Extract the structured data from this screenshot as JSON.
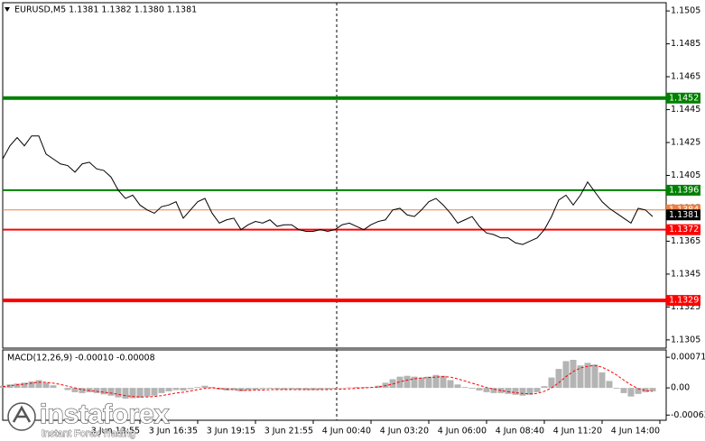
{
  "chart_data": [
    {
      "type": "line",
      "title": "EURUSD,M5  1.1381 1.1382 1.1380 1.1381",
      "color": "#000000",
      "categories": [
        null,
        null,
        null,
        null,
        null,
        null,
        null,
        null,
        null,
        null,
        null,
        null,
        null,
        null,
        null,
        null,
        null,
        null,
        null,
        "3 Jun 13:55",
        null,
        null,
        null,
        null,
        null,
        null,
        null,
        "3 Jun 16:35",
        null,
        null,
        null,
        null,
        null,
        null,
        null,
        "3 Jun 19:15",
        null,
        null,
        null,
        null,
        null,
        null,
        null,
        "3 Jun 21:55",
        null,
        null,
        null,
        null,
        null,
        null,
        null,
        "4 Jun 00:40",
        null,
        null,
        null,
        null,
        null,
        null,
        null,
        "4 Jun 03:20",
        null,
        null,
        null,
        null,
        null,
        null,
        null,
        "4 Jun 06:00",
        null,
        null,
        null,
        null,
        null,
        null,
        null,
        "4 Jun 08:40",
        null,
        null,
        null,
        null,
        null,
        null,
        null,
        "4 Jun 11:20",
        null,
        null,
        null,
        null,
        null,
        null,
        null,
        "4 Jun 14:00"
      ],
      "values": [
        1.1415,
        1.1423,
        1.1428,
        1.1423,
        1.1429,
        1.1429,
        1.1418,
        1.1415,
        1.1412,
        1.1411,
        1.1407,
        1.1412,
        1.1413,
        1.1409,
        1.1408,
        1.1404,
        1.1396,
        1.1391,
        1.1393,
        1.1387,
        1.1384,
        1.1382,
        1.1386,
        1.1387,
        1.1389,
        1.1379,
        1.1384,
        1.1389,
        1.1391,
        1.1382,
        1.1376,
        1.1378,
        1.1379,
        1.1372,
        1.1375,
        1.1377,
        1.1376,
        1.1378,
        1.1374,
        1.1375,
        1.1375,
        1.1372,
        1.1371,
        1.1371,
        1.1372,
        1.1371,
        1.1372,
        1.1375,
        1.1376,
        1.1374,
        1.1372,
        1.1375,
        1.1377,
        1.1378,
        1.1384,
        1.1385,
        1.1381,
        1.138,
        1.1384,
        1.1389,
        1.1391,
        1.1387,
        1.1382,
        1.1376,
        1.1378,
        1.138,
        1.1374,
        1.137,
        1.1369,
        1.1367,
        1.1367,
        1.1364,
        1.1363,
        1.1365,
        1.1367,
        1.1372,
        1.138,
        1.139,
        1.1393,
        1.1387,
        1.1393,
        1.1401,
        1.1395,
        1.1389,
        1.1385,
        1.1382,
        1.1379,
        1.1376,
        1.1385,
        1.1384,
        1.138,
        null
      ],
      "ylim": [
        1.13,
        1.151
      ],
      "yticks": [
        1.1505,
        1.1485,
        1.1465,
        1.1445,
        1.1425,
        1.1405,
        1.1385,
        1.1365,
        1.1345,
        1.1325,
        1.1305
      ],
      "levels": [
        {
          "value": 1.1452,
          "color": "#008000",
          "width": 4
        },
        {
          "value": 1.1396,
          "color": "#008000",
          "width": 2
        },
        {
          "value": 1.1384,
          "color": "#f08040",
          "width": 1
        },
        {
          "value": 1.1372,
          "color": "#ff0000",
          "width": 2
        },
        {
          "value": 1.1329,
          "color": "#ff0000",
          "width": 4
        }
      ],
      "current_price": 1.1381
    },
    {
      "type": "macd",
      "title": "MACD(12,26,9) -0.00010 -0.00008",
      "ylim": [
        -0.00075,
        0.00088
      ],
      "yticks": [
        0.00071,
        {
          "value": 0,
          "label": "0.00"
        },
        -0.00063
      ],
      "histogram": {
        "color": "#b4b4b4",
        "values": [
          5e-05,
          8e-05,
          0.0001,
          0.00012,
          0.00015,
          0.00018,
          0.00012,
          6e-05,
          0,
          -5e-05,
          -0.0001,
          -0.00012,
          -0.0001,
          -0.00012,
          -0.00015,
          -0.00018,
          -0.00022,
          -0.00025,
          -0.00024,
          -0.00023,
          -0.0002,
          -0.00018,
          -0.00012,
          -8e-05,
          -5e-05,
          -6e-05,
          -3e-05,
          2e-05,
          5e-05,
          2e-05,
          -4e-05,
          -6e-05,
          -5e-05,
          -8e-05,
          -6e-05,
          -4e-05,
          -3e-05,
          -2e-05,
          -3e-05,
          -4e-05,
          -3e-05,
          -4e-05,
          -5e-05,
          -5e-05,
          -4e-05,
          -3e-05,
          -2e-05,
          -1e-05,
          1e-05,
          2e-05,
          2e-05,
          1e-05,
          5e-05,
          0.00012,
          0.0002,
          0.00026,
          0.00028,
          0.00026,
          0.00024,
          0.00026,
          0.0003,
          0.00028,
          0.00018,
          8e-05,
          2e-05,
          -2e-05,
          -6e-05,
          -0.0001,
          -0.00012,
          -0.00012,
          -0.00014,
          -0.00016,
          -0.00018,
          -0.00016,
          -0.0001,
          4e-05,
          0.00024,
          0.00044,
          0.00062,
          0.00065,
          0.00052,
          0.00058,
          0.00054,
          0.00036,
          0.00016,
          -2e-05,
          -0.00012,
          -0.0002,
          -0.00014,
          -0.0001,
          -8e-05,
          null
        ]
      },
      "signal": {
        "color": "#ff0000",
        "values": [
          3e-05,
          5e-05,
          7e-05,
          9e-05,
          0.00011,
          0.00013,
          0.00013,
          0.00011,
          8e-05,
          4e-05,
          0,
          -4e-05,
          -6e-05,
          -8e-05,
          -0.0001,
          -0.00012,
          -0.00015,
          -0.00018,
          -0.0002,
          -0.00021,
          -0.00021,
          -0.0002,
          -0.00018,
          -0.00015,
          -0.00012,
          -0.0001,
          -7e-05,
          -4e-05,
          -1e-05,
          0,
          -1e-05,
          -3e-05,
          -4e-05,
          -5e-05,
          -6e-05,
          -5e-05,
          -5e-05,
          -4e-05,
          -4e-05,
          -4e-05,
          -4e-05,
          -4e-05,
          -4e-05,
          -4e-05,
          -4e-05,
          -4e-05,
          -3e-05,
          -3e-05,
          -2e-05,
          -1e-05,
          0,
          1e-05,
          2e-05,
          5e-05,
          9e-05,
          0.00014,
          0.00018,
          0.00021,
          0.00023,
          0.00024,
          0.00025,
          0.00026,
          0.00025,
          0.00021,
          0.00016,
          0.00011,
          6e-05,
          1e-05,
          -3e-05,
          -6e-05,
          -9e-05,
          -0.00011,
          -0.00013,
          -0.00014,
          -0.00013,
          -8e-05,
          0,
          0.00012,
          0.00026,
          0.00038,
          0.00046,
          0.0005,
          0.00052,
          0.00048,
          0.0004,
          0.0003,
          0.00018,
          7e-05,
          -2e-05,
          -6e-05,
          -8e-05,
          null
        ]
      }
    }
  ],
  "watermark": {
    "brand": "instaforex",
    "tagline": "Instant Forex Trading"
  }
}
